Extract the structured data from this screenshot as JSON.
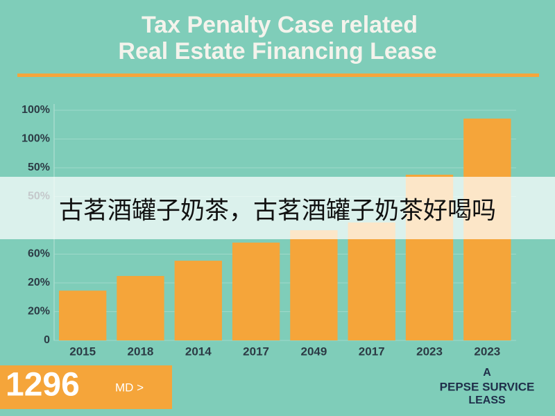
{
  "chart_data": {
    "type": "bar",
    "title": [
      "Tax Penalty Case related",
      "Real Estate Financing Lease"
    ],
    "categories": [
      "2015",
      "2018",
      "2014",
      "2017",
      "2049",
      "2017",
      "2023",
      "2023"
    ],
    "values": [
      17.3,
      22.4,
      27.7,
      34,
      38.3,
      41,
      57.6,
      77.1
    ],
    "color": "#f5a53a",
    "ylim": [
      0,
      80
    ],
    "yticks": [
      0,
      {
        "value": 10,
        "label": "20%"
      },
      {
        "value": 20,
        "label": "20%"
      },
      {
        "value": 30,
        "label": "60%"
      },
      {
        "value": 50,
        "label": "50%"
      },
      {
        "value": 60,
        "label": "50%"
      },
      {
        "value": 70,
        "label": "100%"
      },
      {
        "value": 80,
        "label": "100%"
      }
    ],
    "grid": true
  },
  "badge": {
    "number": "1296",
    "unit": "MD >"
  },
  "footer_note": [
    "A",
    "PEPSE SURVICE",
    "LEASS"
  ],
  "banner": "古茗酒罐子奶茶，古茗酒罐子奶茶好喝吗"
}
